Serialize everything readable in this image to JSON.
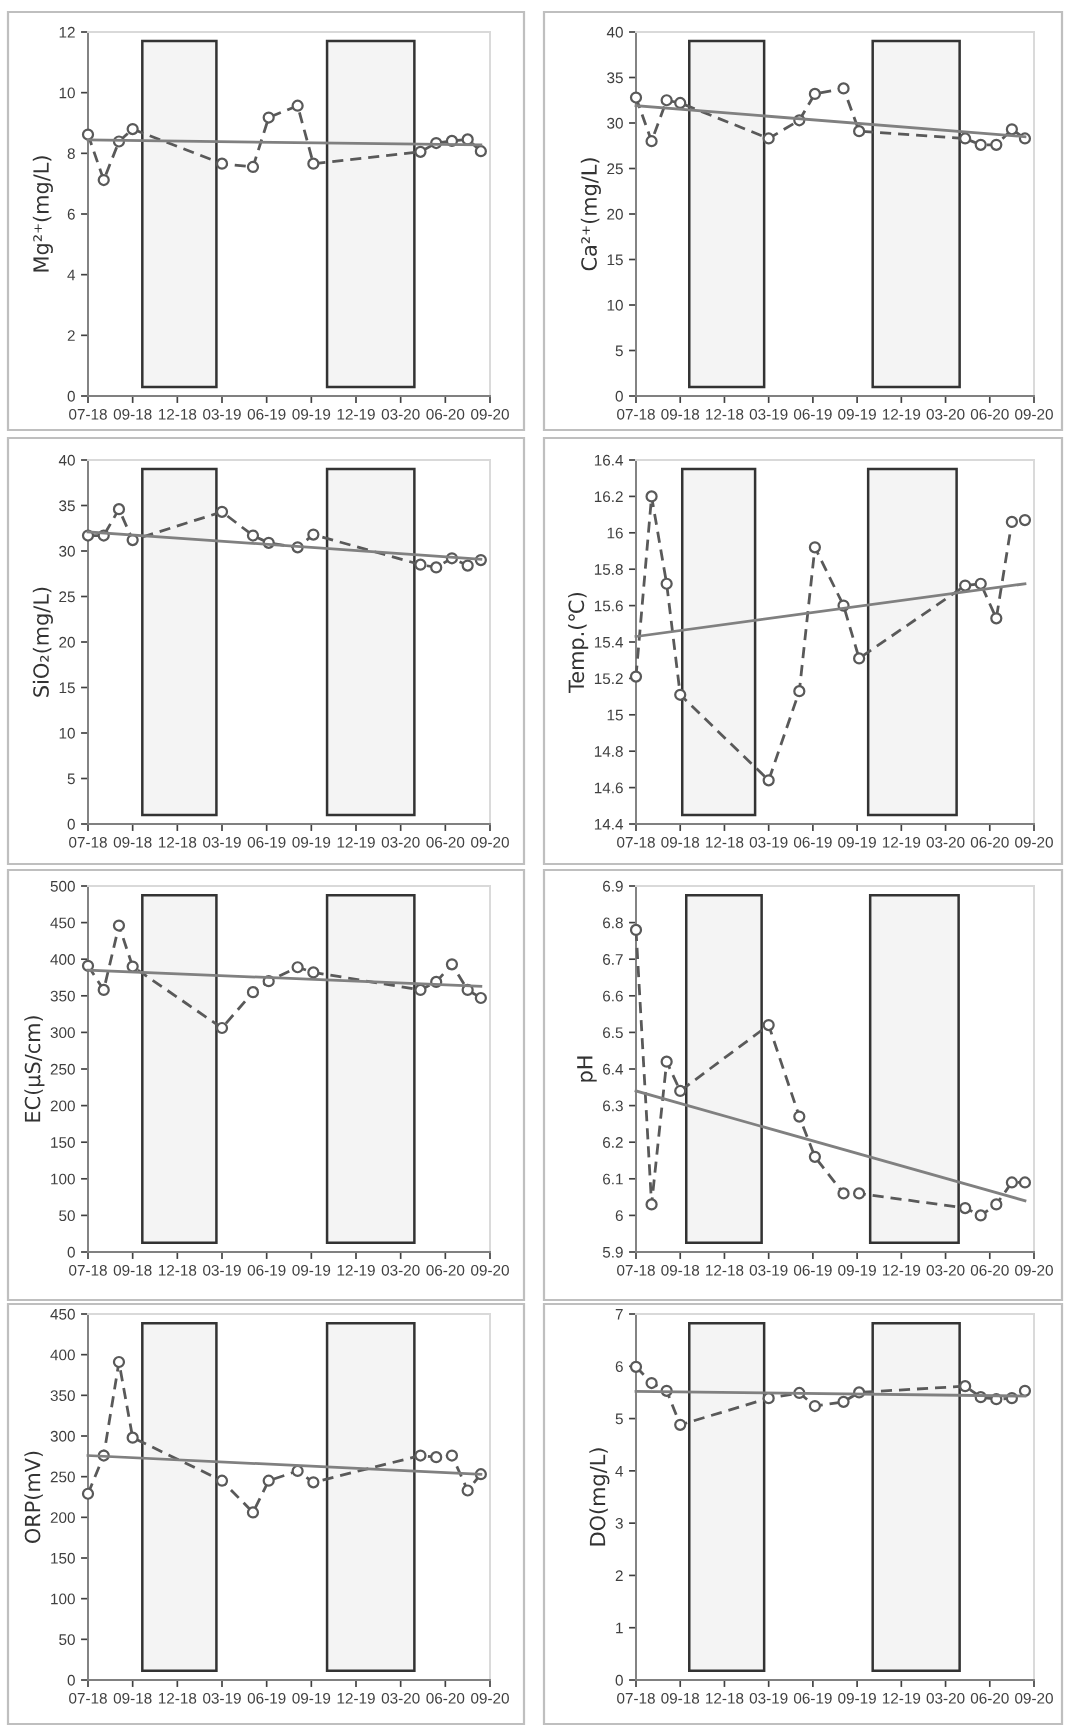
{
  "chart_data": [
    {
      "type": "line",
      "ylabel": "Mg²⁺(mg/L)",
      "x": [
        "2018-07-03",
        "2018-08-03",
        "2018-09-02",
        "2018-09-29",
        "2019-03-24",
        "2019-05-24",
        "2019-06-24",
        "2019-08-20",
        "2019-09-20",
        "2020-04-18",
        "2020-05-19",
        "2020-06-19",
        "2020-07-20",
        "2020-08-15"
      ],
      "xlim": [
        "2018-07-03",
        "2020-09-02"
      ],
      "xticks": [
        {
          "value": "2018-07-03",
          "label": "07-18"
        },
        {
          "value": "2018-09-29",
          "label": "09-18"
        },
        {
          "value": "2018-12-26",
          "label": "12-18"
        },
        {
          "value": "2019-03-24",
          "label": "03-19"
        },
        {
          "value": "2019-06-20",
          "label": "06-19"
        },
        {
          "value": "2019-09-16",
          "label": "09-19"
        },
        {
          "value": "2019-12-13",
          "label": "12-19"
        },
        {
          "value": "2020-03-10",
          "label": "03-20"
        },
        {
          "value": "2020-06-06",
          "label": "06-20"
        },
        {
          "value": "2020-09-02",
          "label": "09-20"
        }
      ],
      "ylim": [
        0,
        12
      ],
      "yticks": [
        0,
        2,
        4,
        6,
        8,
        10,
        12
      ],
      "bands": [
        {
          "axis": "x",
          "from": "2018-10-18",
          "to": "2019-03-13",
          "color": "#f4f4f4"
        },
        {
          "axis": "x",
          "from": "2019-10-17",
          "to": "2020-04-06",
          "color": "#f4f4f4"
        }
      ],
      "series": [
        {
          "color": "#595959",
          "marker": "circle",
          "line_style": "dashed",
          "values": [
            8.62,
            7.12,
            8.39,
            8.8,
            7.66,
            7.55,
            9.18,
            9.57,
            7.66,
            8.05,
            8.34,
            8.41,
            8.46,
            8.07
          ]
        },
        {
          "color": "#808080",
          "marker": "none",
          "line_style": "solid",
          "x": [
            "2018-07-03",
            "2020-08-15"
          ],
          "values": [
            8.44,
            8.28
          ]
        }
      ]
    },
    {
      "type": "line",
      "ylabel": "Ca²⁺(mg/L)",
      "x": [
        "2018-07-03",
        "2018-08-03",
        "2018-09-02",
        "2018-09-29",
        "2019-03-24",
        "2019-05-24",
        "2019-06-24",
        "2019-08-20",
        "2019-09-20",
        "2020-04-18",
        "2020-05-19",
        "2020-06-19",
        "2020-07-20",
        "2020-08-15"
      ],
      "xlim": [
        "2018-07-03",
        "2020-09-02"
      ],
      "xticks": [
        {
          "value": "2018-07-03",
          "label": "07-18"
        },
        {
          "value": "2018-09-29",
          "label": "09-18"
        },
        {
          "value": "2018-12-26",
          "label": "12-18"
        },
        {
          "value": "2019-03-24",
          "label": "03-19"
        },
        {
          "value": "2019-06-20",
          "label": "06-19"
        },
        {
          "value": "2019-09-16",
          "label": "09-19"
        },
        {
          "value": "2019-12-13",
          "label": "12-19"
        },
        {
          "value": "2020-03-10",
          "label": "03-20"
        },
        {
          "value": "2020-06-06",
          "label": "06-20"
        },
        {
          "value": "2020-09-02",
          "label": "09-20"
        }
      ],
      "ylim": [
        0,
        40
      ],
      "yticks": [
        0,
        5,
        10,
        15,
        20,
        25,
        30,
        35,
        40
      ],
      "bands": [
        {
          "axis": "x",
          "from": "2018-10-17",
          "to": "2019-03-15",
          "color": "#f4f4f4"
        },
        {
          "axis": "x",
          "from": "2019-10-17",
          "to": "2020-04-07",
          "color": "#f4f4f4"
        }
      ],
      "series": [
        {
          "color": "#595959",
          "marker": "circle",
          "line_style": "dashed",
          "values": [
            32.8,
            28.0,
            32.5,
            32.2,
            28.3,
            30.3,
            33.2,
            33.8,
            29.1,
            28.3,
            27.6,
            27.6,
            29.3,
            28.3
          ]
        },
        {
          "color": "#808080",
          "marker": "none",
          "line_style": "solid",
          "x": [
            "2018-07-03",
            "2020-08-15"
          ],
          "values": [
            31.9,
            28.5
          ]
        }
      ]
    },
    {
      "type": "line",
      "ylabel": "SiO₂(mg/L)",
      "x": [
        "2018-07-03",
        "2018-08-03",
        "2018-09-02",
        "2018-09-29",
        "2019-03-24",
        "2019-05-24",
        "2019-06-24",
        "2019-08-20",
        "2019-09-20",
        "2020-04-18",
        "2020-05-19",
        "2020-06-19",
        "2020-07-20",
        "2020-08-15"
      ],
      "xlim": [
        "2018-07-03",
        "2020-09-02"
      ],
      "xticks": [
        {
          "value": "2018-07-03",
          "label": "07-18"
        },
        {
          "value": "2018-09-29",
          "label": "09-18"
        },
        {
          "value": "2018-12-26",
          "label": "12-18"
        },
        {
          "value": "2019-03-24",
          "label": "03-19"
        },
        {
          "value": "2019-06-20",
          "label": "06-19"
        },
        {
          "value": "2019-09-16",
          "label": "09-19"
        },
        {
          "value": "2019-12-13",
          "label": "12-19"
        },
        {
          "value": "2020-03-10",
          "label": "03-20"
        },
        {
          "value": "2020-06-06",
          "label": "06-20"
        },
        {
          "value": "2020-09-02",
          "label": "09-20"
        }
      ],
      "ylim": [
        0,
        40
      ],
      "yticks": [
        0,
        5,
        10,
        15,
        20,
        25,
        30,
        35,
        40
      ],
      "bands": [
        {
          "axis": "x",
          "from": "2018-10-18",
          "to": "2019-03-13",
          "color": "#f4f4f4"
        },
        {
          "axis": "x",
          "from": "2019-10-17",
          "to": "2020-04-06",
          "color": "#f4f4f4"
        }
      ],
      "series": [
        {
          "color": "#595959",
          "marker": "circle",
          "line_style": "dashed",
          "values": [
            31.7,
            31.7,
            34.6,
            31.2,
            34.3,
            31.7,
            30.9,
            30.4,
            31.8,
            28.5,
            28.2,
            29.2,
            28.4,
            29.0
          ]
        },
        {
          "color": "#808080",
          "marker": "none",
          "line_style": "solid",
          "x": [
            "2018-07-03",
            "2020-08-15"
          ],
          "values": [
            32.1,
            29.1
          ]
        }
      ]
    },
    {
      "type": "line",
      "ylabel": "Temp.(℃)",
      "x": [
        "2018-07-03",
        "2018-08-03",
        "2018-09-02",
        "2018-09-29",
        "2019-03-24",
        "2019-05-24",
        "2019-06-24",
        "2019-08-20",
        "2019-09-20",
        "2020-04-18",
        "2020-05-19",
        "2020-06-19",
        "2020-07-20",
        "2020-08-15"
      ],
      "xlim": [
        "2018-07-03",
        "2020-09-02"
      ],
      "xticks": [
        {
          "value": "2018-07-03",
          "label": "07-18"
        },
        {
          "value": "2018-09-29",
          "label": "09-18"
        },
        {
          "value": "2018-12-26",
          "label": "12-18"
        },
        {
          "value": "2019-03-24",
          "label": "03-19"
        },
        {
          "value": "2019-06-20",
          "label": "06-19"
        },
        {
          "value": "2019-09-16",
          "label": "09-19"
        },
        {
          "value": "2019-12-13",
          "label": "12-19"
        },
        {
          "value": "2020-03-10",
          "label": "03-20"
        },
        {
          "value": "2020-06-06",
          "label": "06-20"
        },
        {
          "value": "2020-09-02",
          "label": "09-20"
        }
      ],
      "ylim": [
        14.4,
        16.4
      ],
      "yticks": [
        14.4,
        14.6,
        14.8,
        15,
        15.2,
        15.4,
        15.6,
        15.8,
        16,
        16.2,
        16.4
      ],
      "bands": [
        {
          "axis": "x",
          "from": "2018-10-03",
          "to": "2019-02-25",
          "color": "#f4f4f4"
        },
        {
          "axis": "x",
          "from": "2019-10-08",
          "to": "2020-04-01",
          "color": "#f4f4f4"
        }
      ],
      "series": [
        {
          "color": "#595959",
          "marker": "circle",
          "line_style": "dashed",
          "values": [
            15.21,
            16.2,
            15.72,
            15.11,
            14.64,
            15.13,
            15.92,
            15.6,
            15.31,
            15.71,
            15.72,
            15.53,
            16.06,
            16.07
          ]
        },
        {
          "color": "#808080",
          "marker": "none",
          "line_style": "solid",
          "x": [
            "2018-07-03",
            "2020-08-15"
          ],
          "values": [
            15.43,
            15.72
          ]
        }
      ]
    },
    {
      "type": "line",
      "ylabel": "EC(μS/cm)",
      "x": [
        "2018-07-03",
        "2018-08-03",
        "2018-09-02",
        "2018-09-29",
        "2019-03-24",
        "2019-05-24",
        "2019-06-24",
        "2019-08-20",
        "2019-09-20",
        "2020-04-18",
        "2020-05-19",
        "2020-06-19",
        "2020-07-20",
        "2020-08-15"
      ],
      "xlim": [
        "2018-07-03",
        "2020-09-02"
      ],
      "xticks": [
        {
          "value": "2018-07-03",
          "label": "07-18"
        },
        {
          "value": "2018-09-29",
          "label": "09-18"
        },
        {
          "value": "2018-12-26",
          "label": "12-18"
        },
        {
          "value": "2019-03-24",
          "label": "03-19"
        },
        {
          "value": "2019-06-20",
          "label": "06-19"
        },
        {
          "value": "2019-09-16",
          "label": "09-19"
        },
        {
          "value": "2019-12-13",
          "label": "12-19"
        },
        {
          "value": "2020-03-10",
          "label": "03-20"
        },
        {
          "value": "2020-06-06",
          "label": "06-20"
        },
        {
          "value": "2020-09-02",
          "label": "09-20"
        }
      ],
      "ylim": [
        0,
        500
      ],
      "yticks": [
        0,
        50,
        100,
        150,
        200,
        250,
        300,
        350,
        400,
        450,
        500
      ],
      "bands": [
        {
          "axis": "x",
          "from": "2018-10-18",
          "to": "2019-03-13",
          "color": "#f4f4f4"
        },
        {
          "axis": "x",
          "from": "2019-10-17",
          "to": "2020-04-06",
          "color": "#f4f4f4"
        }
      ],
      "series": [
        {
          "color": "#595959",
          "marker": "circle",
          "line_style": "dashed",
          "values": [
            391,
            358,
            446,
            390,
            306,
            355,
            370,
            389,
            382,
            358,
            369,
            393,
            358,
            347
          ]
        },
        {
          "color": "#808080",
          "marker": "none",
          "line_style": "solid",
          "x": [
            "2018-07-03",
            "2020-08-15"
          ],
          "values": [
            385,
            363
          ]
        }
      ]
    },
    {
      "type": "line",
      "ylabel": "pH",
      "x": [
        "2018-07-03",
        "2018-08-03",
        "2018-09-02",
        "2018-09-29",
        "2019-03-24",
        "2019-05-24",
        "2019-06-24",
        "2019-08-20",
        "2019-09-20",
        "2020-04-18",
        "2020-05-19",
        "2020-06-19",
        "2020-07-20",
        "2020-08-15"
      ],
      "xlim": [
        "2018-07-03",
        "2020-09-02"
      ],
      "xticks": [
        {
          "value": "2018-07-03",
          "label": "07-18"
        },
        {
          "value": "2018-09-29",
          "label": "09-18"
        },
        {
          "value": "2018-12-26",
          "label": "12-18"
        },
        {
          "value": "2019-03-24",
          "label": "03-19"
        },
        {
          "value": "2019-06-20",
          "label": "06-19"
        },
        {
          "value": "2019-09-16",
          "label": "09-19"
        },
        {
          "value": "2019-12-13",
          "label": "12-19"
        },
        {
          "value": "2020-03-10",
          "label": "03-20"
        },
        {
          "value": "2020-06-06",
          "label": "06-20"
        },
        {
          "value": "2020-09-02",
          "label": "09-20"
        }
      ],
      "ylim": [
        5.9,
        6.9
      ],
      "yticks": [
        5.9,
        6,
        6.1,
        6.2,
        6.3,
        6.4,
        6.5,
        6.6,
        6.7,
        6.8,
        6.9
      ],
      "bands": [
        {
          "axis": "x",
          "from": "2018-10-11",
          "to": "2019-03-10",
          "color": "#f4f4f4"
        },
        {
          "axis": "x",
          "from": "2019-10-12",
          "to": "2020-04-05",
          "color": "#f4f4f4"
        }
      ],
      "series": [
        {
          "color": "#595959",
          "marker": "circle",
          "line_style": "dashed",
          "values": [
            6.78,
            6.03,
            6.42,
            6.34,
            6.52,
            6.27,
            6.16,
            6.06,
            6.06,
            6.02,
            6.0,
            6.03,
            6.09,
            6.09
          ]
        },
        {
          "color": "#808080",
          "marker": "none",
          "line_style": "solid",
          "x": [
            "2018-07-03",
            "2020-08-15"
          ],
          "values": [
            6.34,
            6.04
          ]
        }
      ]
    },
    {
      "type": "line",
      "ylabel": "ORP(mV)",
      "x": [
        "2018-07-03",
        "2018-08-03",
        "2018-09-02",
        "2018-09-29",
        "2019-03-24",
        "2019-05-24",
        "2019-06-24",
        "2019-08-20",
        "2019-09-20",
        "2020-04-18",
        "2020-05-19",
        "2020-06-19",
        "2020-07-20",
        "2020-08-15"
      ],
      "xlim": [
        "2018-07-03",
        "2020-09-02"
      ],
      "xticks": [
        {
          "value": "2018-07-03",
          "label": "07-18"
        },
        {
          "value": "2018-09-29",
          "label": "09-18"
        },
        {
          "value": "2018-12-26",
          "label": "12-18"
        },
        {
          "value": "2019-03-24",
          "label": "03-19"
        },
        {
          "value": "2019-06-20",
          "label": "06-19"
        },
        {
          "value": "2019-09-16",
          "label": "09-19"
        },
        {
          "value": "2019-12-13",
          "label": "12-19"
        },
        {
          "value": "2020-03-10",
          "label": "03-20"
        },
        {
          "value": "2020-06-06",
          "label": "06-20"
        },
        {
          "value": "2020-09-02",
          "label": "09-20"
        }
      ],
      "ylim": [
        0,
        450
      ],
      "yticks": [
        0,
        50,
        100,
        150,
        200,
        250,
        300,
        350,
        400,
        450
      ],
      "bands": [
        {
          "axis": "x",
          "from": "2018-10-18",
          "to": "2019-03-13",
          "color": "#f4f4f4"
        },
        {
          "axis": "x",
          "from": "2019-10-17",
          "to": "2020-04-06",
          "color": "#f4f4f4"
        }
      ],
      "series": [
        {
          "color": "#595959",
          "marker": "circle",
          "line_style": "dashed",
          "values": [
            229,
            276,
            391,
            298,
            245,
            206,
            245,
            257,
            243,
            276,
            274,
            276,
            233,
            253
          ]
        },
        {
          "color": "#808080",
          "marker": "none",
          "line_style": "solid",
          "x": [
            "2018-07-03",
            "2020-08-15"
          ],
          "values": [
            276,
            253
          ]
        }
      ]
    },
    {
      "type": "line",
      "ylabel": "DO(mg/L)",
      "x": [
        "2018-07-03",
        "2018-08-03",
        "2018-09-02",
        "2018-09-29",
        "2019-03-24",
        "2019-05-24",
        "2019-06-24",
        "2019-08-20",
        "2019-09-20",
        "2020-04-18",
        "2020-05-19",
        "2020-06-19",
        "2020-07-20",
        "2020-08-15"
      ],
      "xlim": [
        "2018-07-03",
        "2020-09-02"
      ],
      "xticks": [
        {
          "value": "2018-07-03",
          "label": "07-18"
        },
        {
          "value": "2018-09-29",
          "label": "09-18"
        },
        {
          "value": "2018-12-26",
          "label": "12-18"
        },
        {
          "value": "2019-03-24",
          "label": "03-19"
        },
        {
          "value": "2019-06-20",
          "label": "06-19"
        },
        {
          "value": "2019-09-16",
          "label": "09-19"
        },
        {
          "value": "2019-12-13",
          "label": "12-19"
        },
        {
          "value": "2020-03-10",
          "label": "03-20"
        },
        {
          "value": "2020-06-06",
          "label": "06-20"
        },
        {
          "value": "2020-09-02",
          "label": "09-20"
        }
      ],
      "ylim": [
        0,
        7
      ],
      "yticks": [
        0,
        1,
        2,
        3,
        4,
        5,
        6,
        7
      ],
      "bands": [
        {
          "axis": "x",
          "from": "2018-10-17",
          "to": "2019-03-15",
          "color": "#f4f4f4"
        },
        {
          "axis": "x",
          "from": "2019-10-17",
          "to": "2020-04-07",
          "color": "#f4f4f4"
        }
      ],
      "series": [
        {
          "color": "#595959",
          "marker": "circle",
          "line_style": "dashed",
          "values": [
            5.99,
            5.68,
            5.53,
            4.88,
            5.39,
            5.49,
            5.24,
            5.32,
            5.5,
            5.62,
            5.41,
            5.37,
            5.39,
            5.53
          ]
        },
        {
          "color": "#808080",
          "marker": "none",
          "line_style": "solid",
          "x": [
            "2018-07-03",
            "2020-08-15"
          ],
          "values": [
            5.52,
            5.43
          ]
        }
      ]
    }
  ]
}
